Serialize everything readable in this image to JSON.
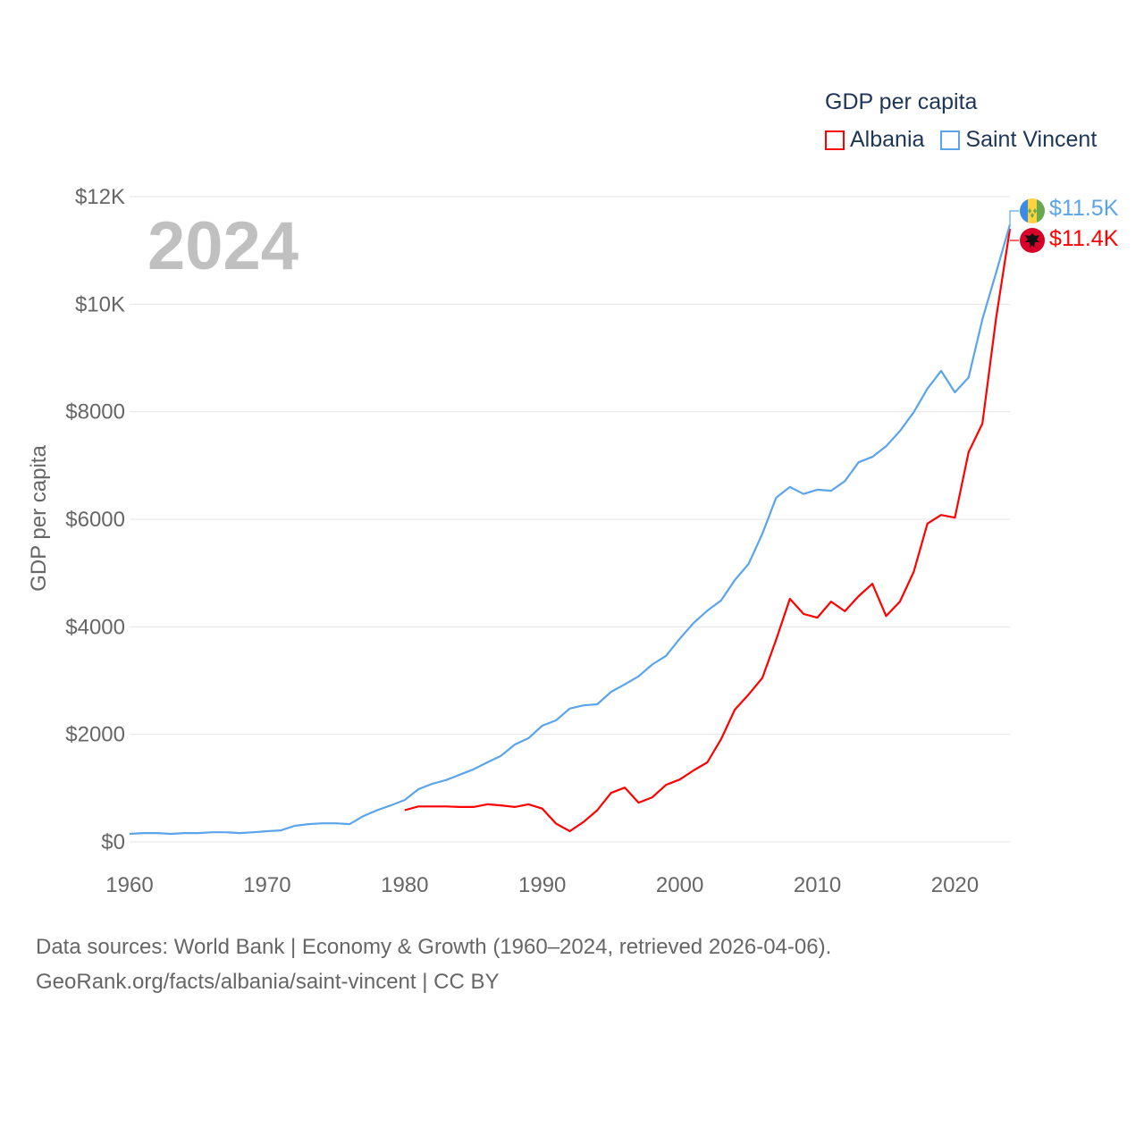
{
  "chart_data": {
    "type": "line",
    "title": "GDP per capita",
    "xlabel": "",
    "ylabel": "GDP per capita",
    "xlim": [
      1960,
      2024
    ],
    "ylim": [
      0,
      12000
    ],
    "grid": true,
    "legend_position": "top-right",
    "x_ticks": [
      1960,
      1970,
      1980,
      1990,
      2000,
      2010,
      2020
    ],
    "x_tick_labels": [
      "1960",
      "1970",
      "1980",
      "1990",
      "2000",
      "2010",
      "2020"
    ],
    "y_ticks": [
      0,
      2000,
      4000,
      6000,
      8000,
      10000,
      12000
    ],
    "y_tick_labels": [
      "$0",
      "$2000",
      "$4000",
      "$6000",
      "$8000",
      "$10K",
      "$12K"
    ],
    "current_year": "2024",
    "series": [
      {
        "name": "Albania",
        "color": "#ff0000",
        "start_year": 1980,
        "end_label": "$11.4K",
        "values": [
          590,
          660,
          660,
          660,
          650,
          650,
          700,
          680,
          650,
          700,
          620,
          340,
          200,
          370,
          590,
          910,
          1010,
          730,
          830,
          1060,
          1160,
          1330,
          1480,
          1910,
          2460,
          2740,
          3050,
          3760,
          4520,
          4240,
          4170,
          4470,
          4290,
          4570,
          4800,
          4200,
          4470,
          5020,
          5920,
          6080,
          6030,
          7250,
          7780,
          9750,
          11400
        ]
      },
      {
        "name": "Saint Vincent",
        "color": "#5ca4ea",
        "start_year": 1960,
        "end_label": "$11.5K",
        "values": [
          150,
          165,
          165,
          150,
          165,
          165,
          180,
          180,
          165,
          180,
          200,
          215,
          300,
          330,
          345,
          345,
          330,
          480,
          590,
          680,
          780,
          980,
          1080,
          1150,
          1250,
          1350,
          1480,
          1600,
          1810,
          1930,
          2160,
          2260,
          2480,
          2540,
          2560,
          2790,
          2930,
          3080,
          3300,
          3460,
          3780,
          4070,
          4300,
          4490,
          4870,
          5170,
          5730,
          6400,
          6600,
          6470,
          6550,
          6530,
          6710,
          7060,
          7160,
          7360,
          7640,
          7990,
          8430,
          8760,
          8360,
          8640,
          9720,
          10590,
          11480
        ]
      }
    ]
  },
  "footer": {
    "line1": "Data sources: World Bank | Economy & Growth (1960–2024, retrieved 2026-04-06).",
    "line2": "GeoRank.org/facts/albania/saint-vincent | CC BY"
  }
}
